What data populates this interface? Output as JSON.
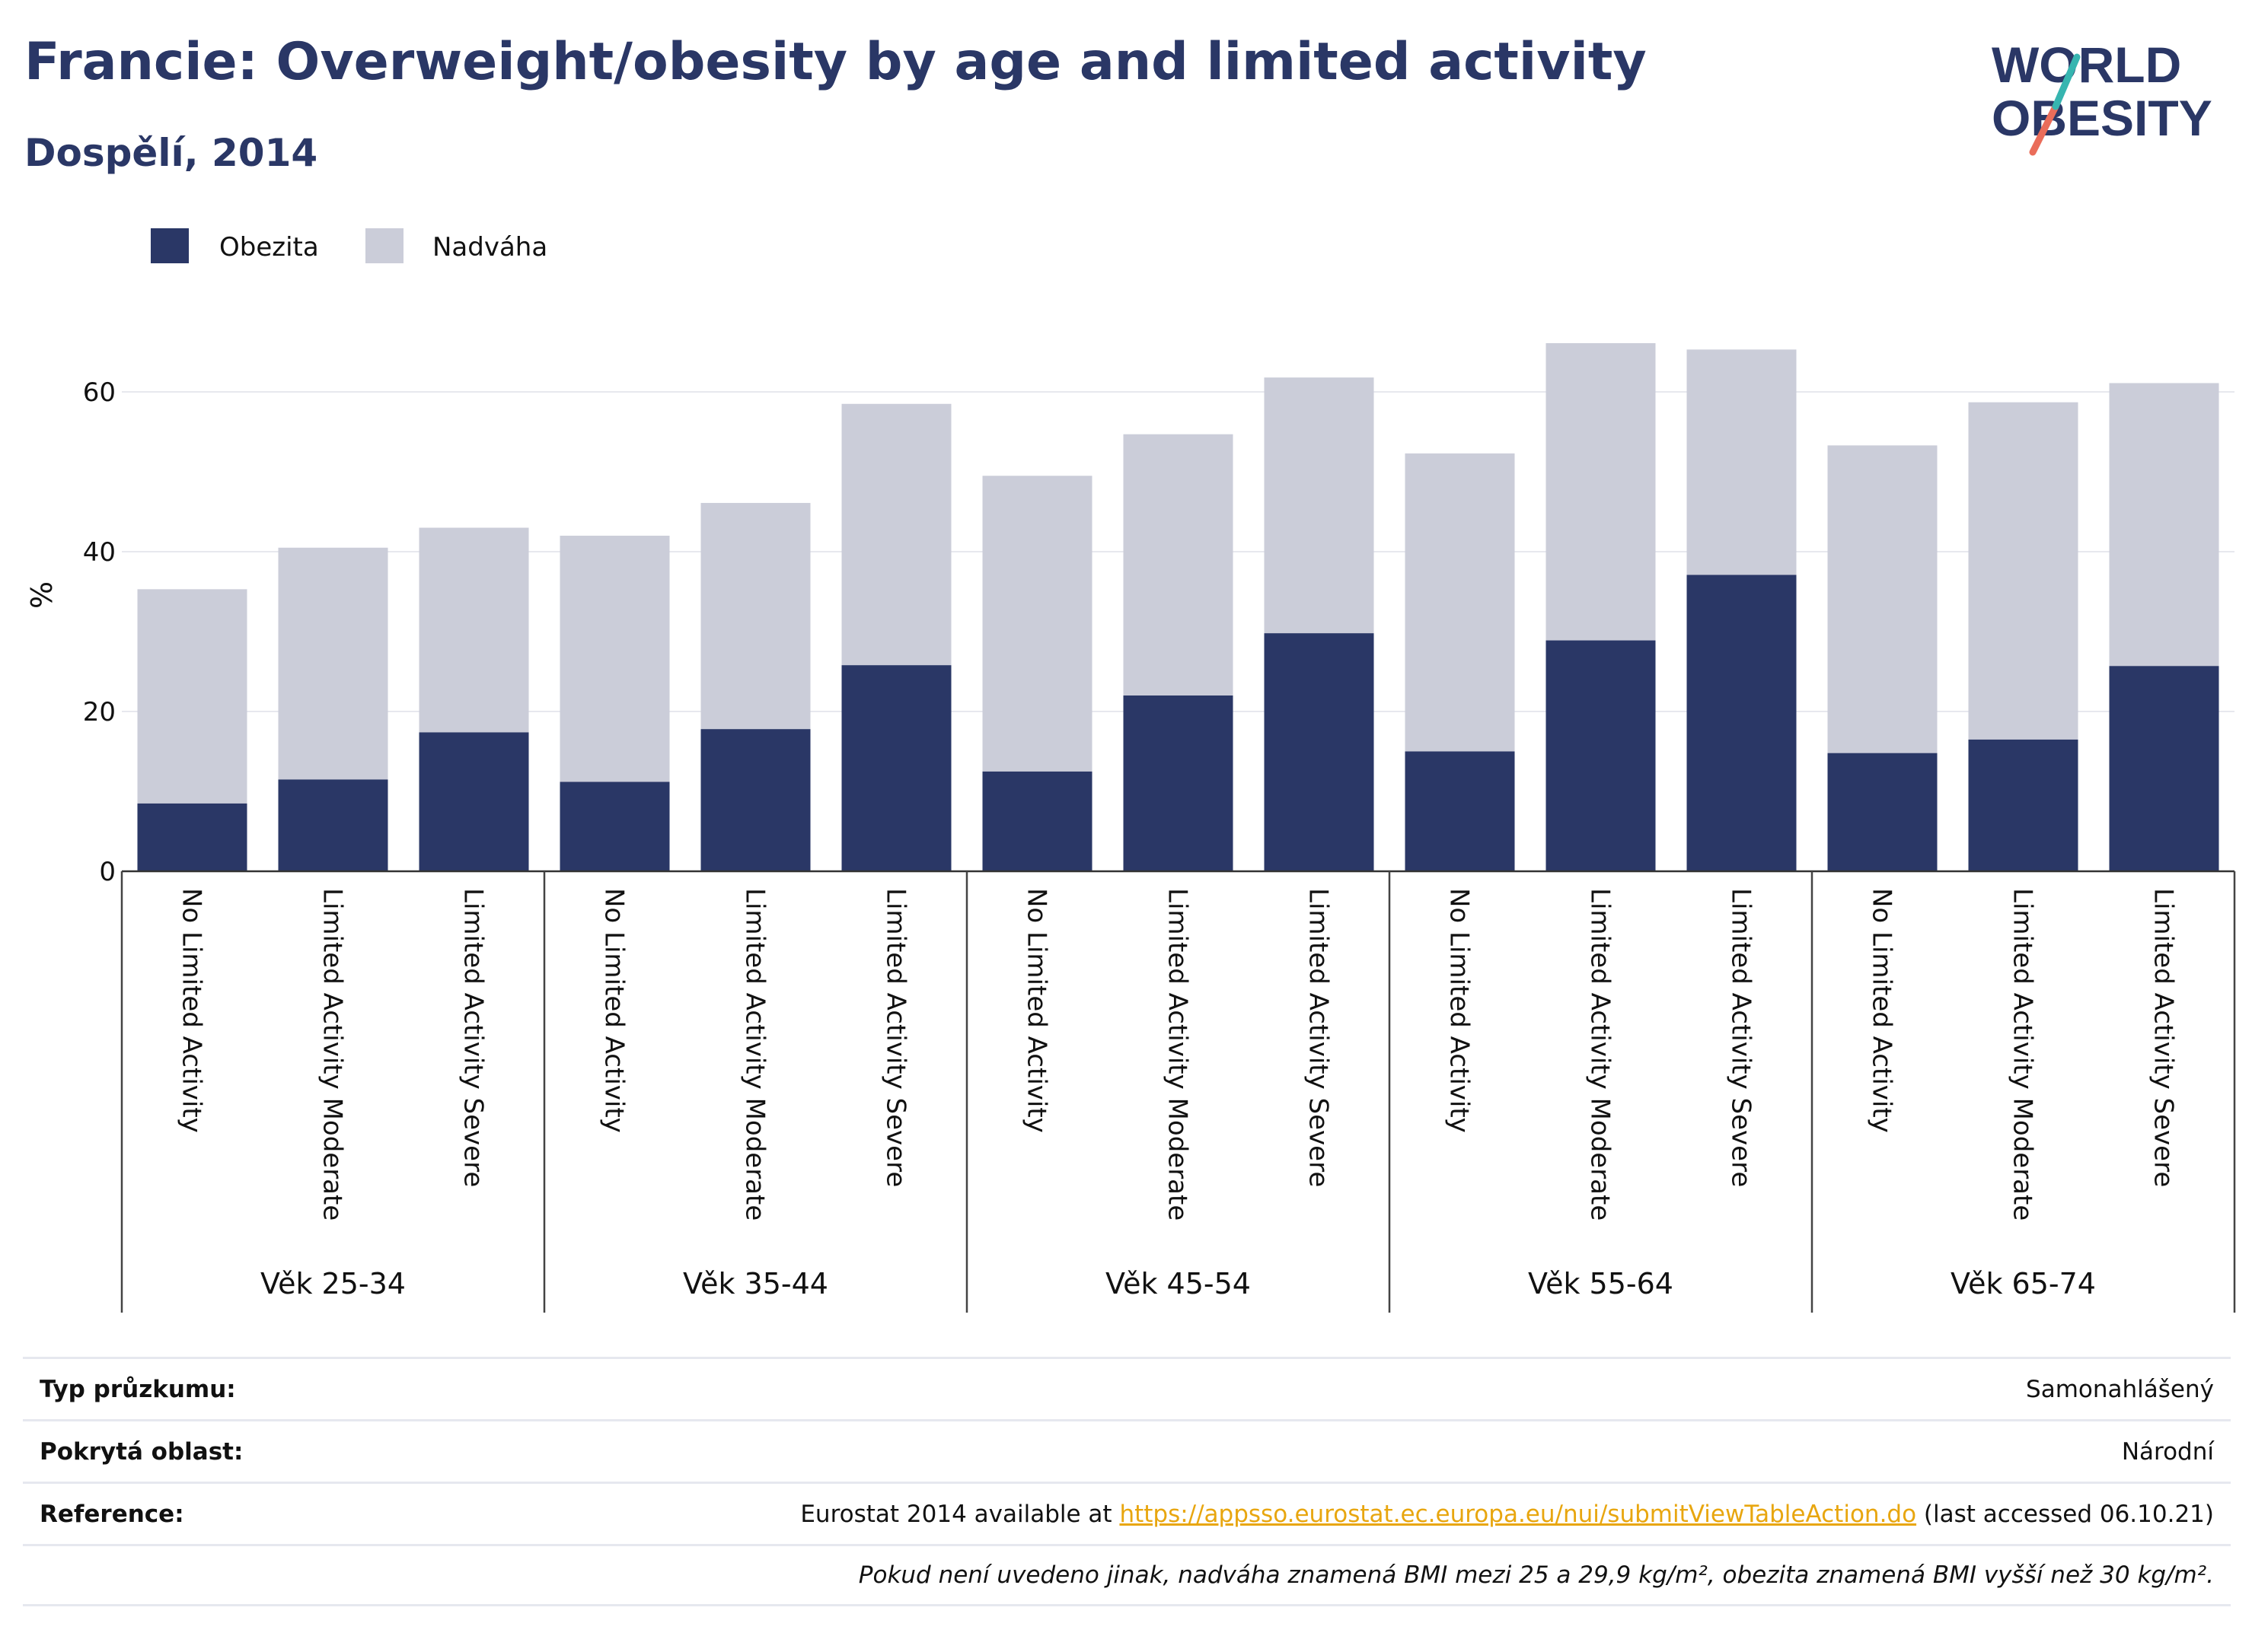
{
  "header": {
    "title": "Francie: Overweight/obesity by age and limited activity",
    "subtitle": "Dospělí, 2014"
  },
  "logo": {
    "line1": "WORLD",
    "line2": "OBESITY"
  },
  "colors": {
    "obesity": "#2a3766",
    "overweight": "#cbcdd9",
    "title": "#2a3766",
    "link": "#e8a60f"
  },
  "chart_data": {
    "type": "bar",
    "stacked": true,
    "ylabel": "%",
    "ylim": [
      0,
      70
    ],
    "yticks": [
      0,
      20,
      40,
      60
    ],
    "grid": true,
    "legend_position": "top-left",
    "categories": [
      "No Limited Activity",
      "Limited Activity Moderate",
      "Limited Activity Severe",
      "No Limited Activity",
      "Limited Activity Moderate",
      "Limited Activity Severe",
      "No Limited Activity",
      "Limited Activity Moderate",
      "Limited Activity Severe",
      "No Limited Activity",
      "Limited Activity Moderate",
      "Limited Activity Severe",
      "No Limited Activity",
      "Limited Activity Moderate",
      "Limited Activity Severe"
    ],
    "groups": [
      "Věk 25-34",
      "Věk 35-44",
      "Věk 45-54",
      "Věk 55-64",
      "Věk 65-74"
    ],
    "series": [
      {
        "name": "Obezita",
        "values": [
          8.5,
          11.5,
          17.4,
          11.2,
          17.8,
          25.8,
          12.5,
          22.0,
          29.8,
          15.0,
          28.9,
          37.1,
          14.8,
          16.5,
          25.7
        ]
      },
      {
        "name": "Nadváha",
        "values": [
          26.8,
          29.0,
          25.6,
          30.8,
          28.3,
          32.7,
          37.0,
          32.7,
          32.0,
          37.3,
          37.2,
          28.2,
          38.5,
          42.2,
          35.4
        ]
      }
    ]
  },
  "info": {
    "survey_type_label": "Typ průzkumu:",
    "survey_type_value": "Samonahlášený",
    "coverage_label": "Pokrytá oblast:",
    "coverage_value": "Národní",
    "reference_label": "Reference:",
    "reference_prefix": "Eurostat 2014 available at ",
    "reference_link": "https://appsso.eurostat.ec.europa.eu/nui/submitViewTableAction.do",
    "reference_suffix": " (last accessed 06.10.21)",
    "note": "Pokud není uvedeno jinak, nadváha znamená BMI mezi 25 a 29,9 kg/m², obezita znamená BMI vyšší než 30 kg/m²."
  }
}
